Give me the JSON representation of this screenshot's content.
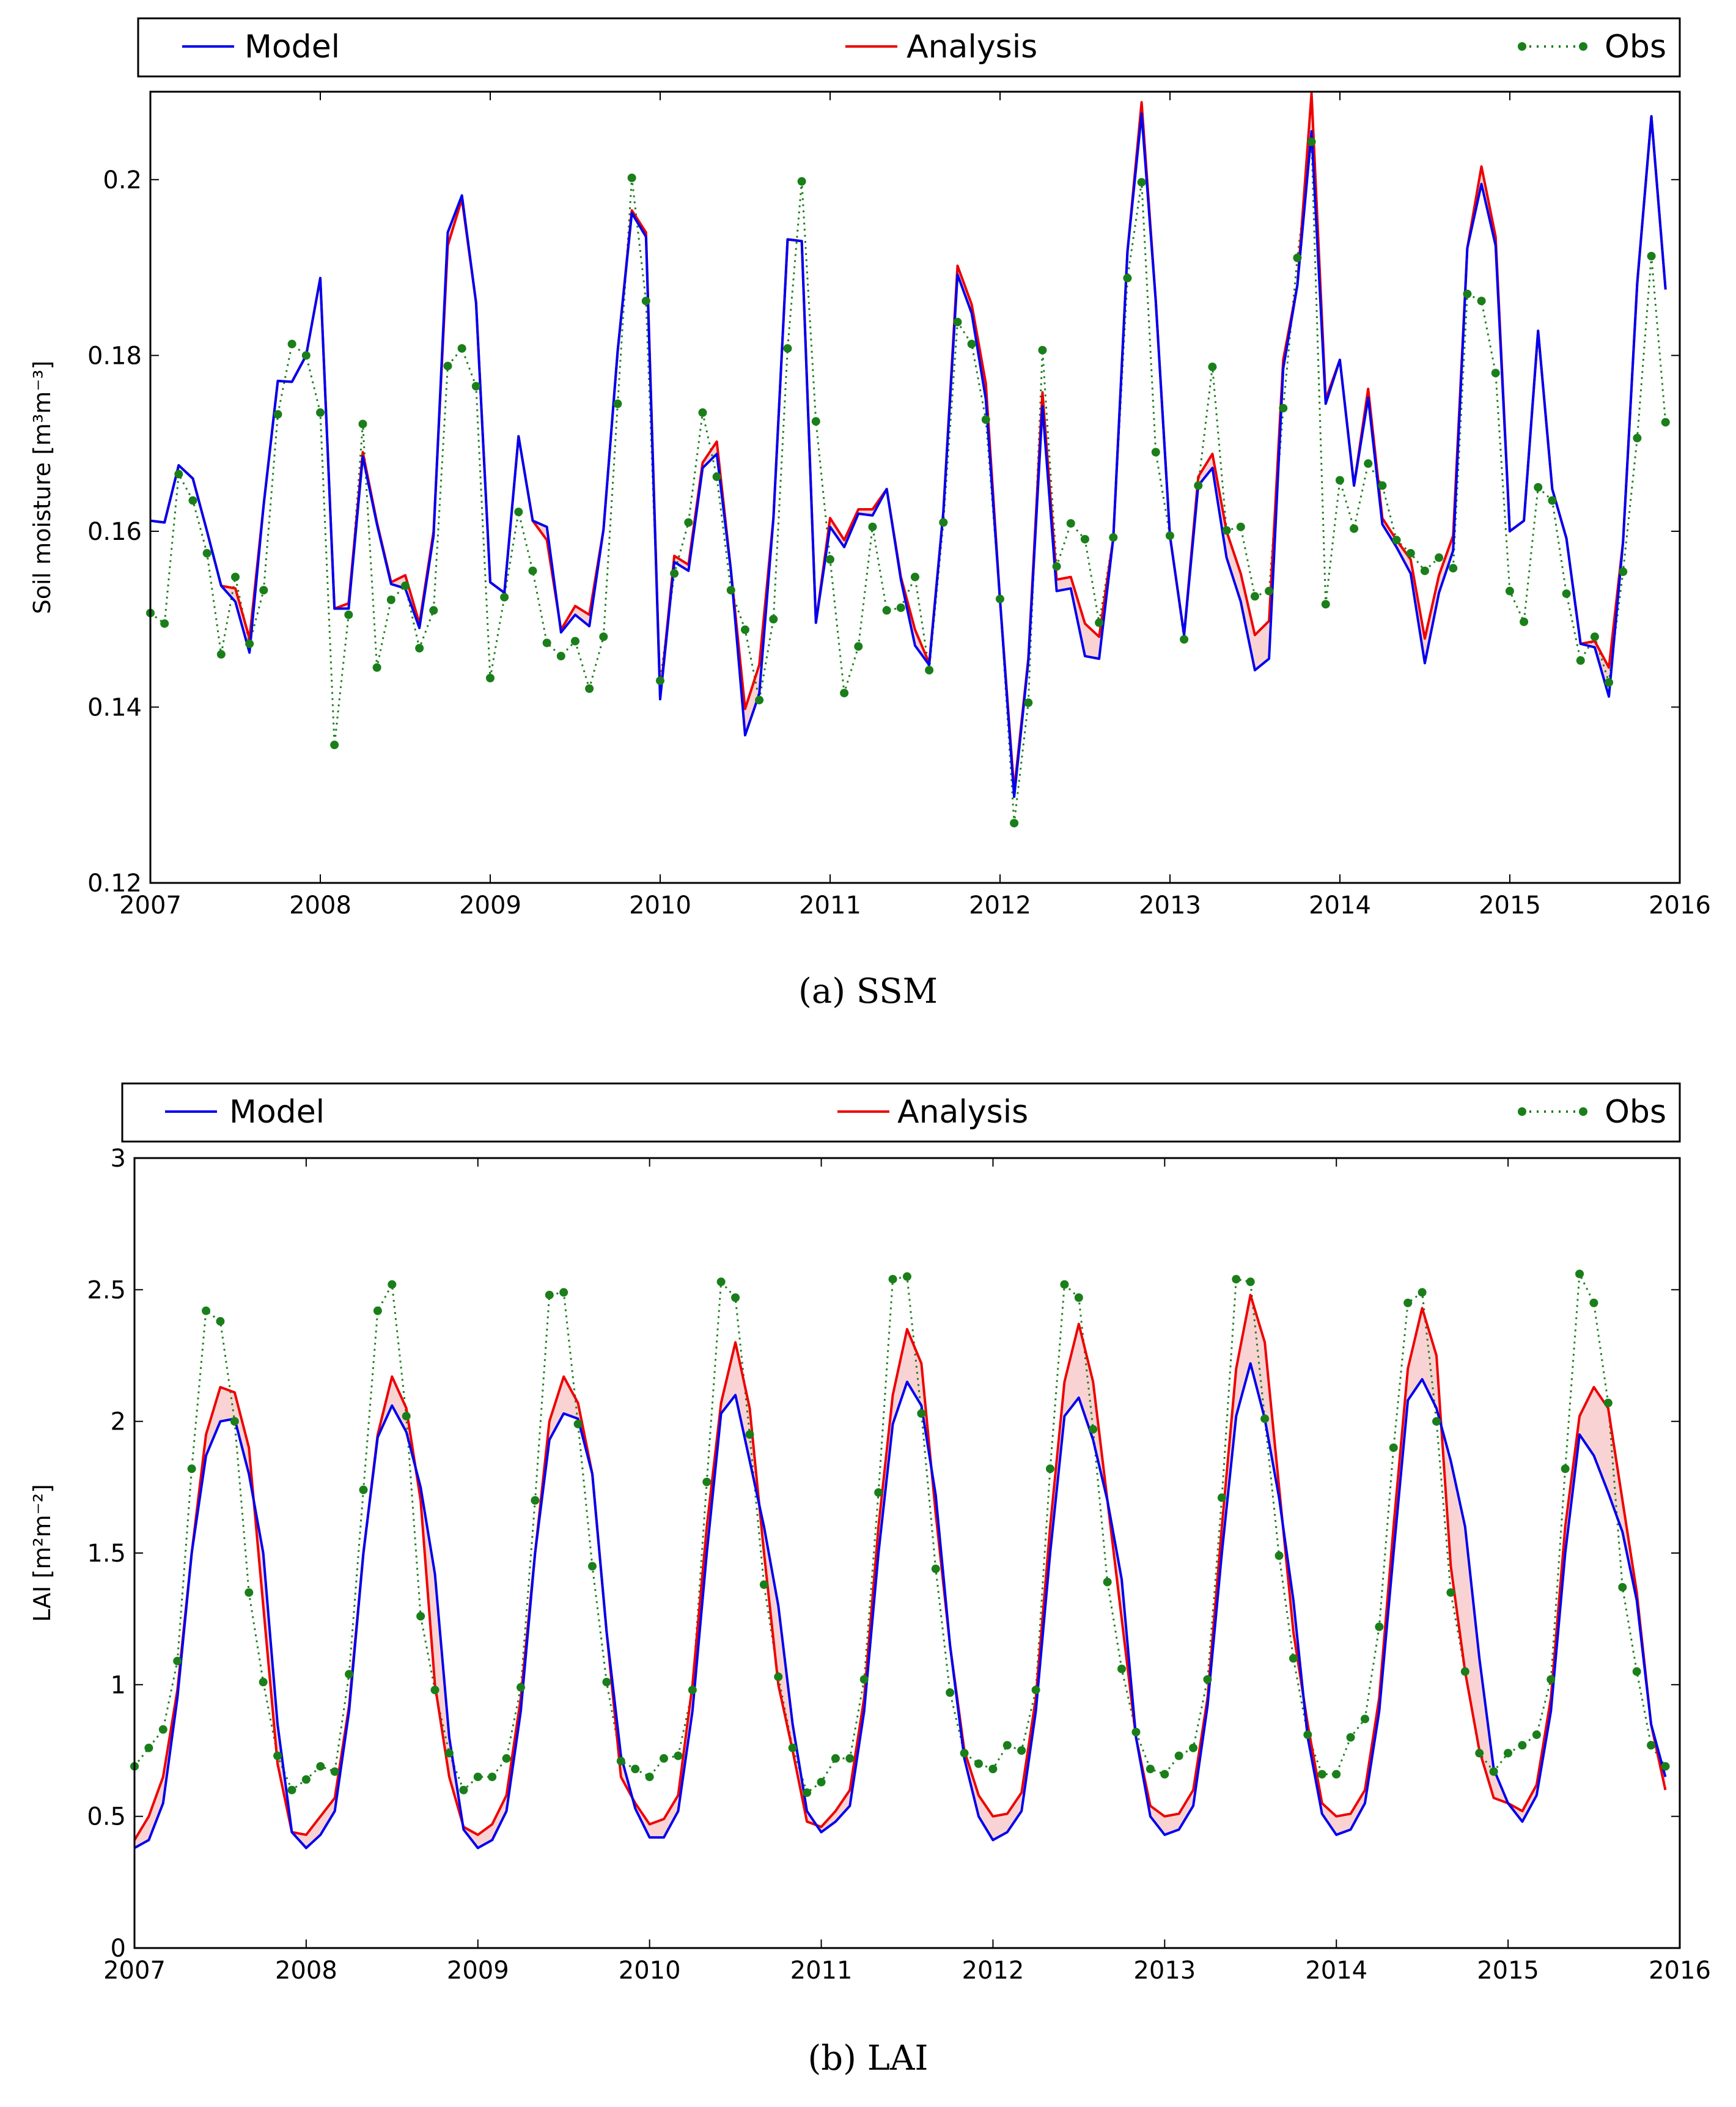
{
  "figure": {
    "legend": {
      "model": "Model",
      "analysis": "Analysis",
      "obs": "Obs"
    },
    "colors": {
      "model": "#0000ee",
      "analysis": "#ee0000",
      "obs": "#1a7f1a",
      "fill": "#f9d3d3"
    }
  },
  "chart_data": [
    {
      "type": "line",
      "caption": "(a)  SSM",
      "title": "",
      "xlabel": "",
      "ylabel": "Soil moisture [m³m⁻³]",
      "xlim": [
        2007,
        2016
      ],
      "ylim": [
        0.12,
        0.21
      ],
      "xticks": [
        2007,
        2008,
        2009,
        2010,
        2011,
        2012,
        2013,
        2014,
        2015,
        2016
      ],
      "xtick_labels": [
        "2007",
        "2008",
        "2009",
        "2010",
        "2011",
        "2012",
        "2013",
        "2014",
        "2015",
        "2016"
      ],
      "yticks": [
        0.12,
        0.14,
        0.16,
        0.18,
        0.2
      ],
      "ytick_labels": [
        "0.12",
        "0.14",
        "0.16",
        "0.18",
        "0.2"
      ],
      "series": [
        {
          "name": "Model",
          "start": 2007.0,
          "step": 0.08333,
          "values": [
            0.1612,
            0.161,
            0.1675,
            0.166,
            0.16,
            0.1538,
            0.152,
            0.1462,
            0.163,
            0.1771,
            0.177,
            0.18,
            0.1888,
            0.1512,
            0.1512,
            0.1685,
            0.1608,
            0.154,
            0.1535,
            0.149,
            0.1595,
            0.194,
            0.1982,
            0.186,
            0.1542,
            0.153,
            0.1708,
            0.1612,
            0.1605,
            0.1485,
            0.1505,
            0.1492,
            0.1602,
            0.1805,
            0.1962,
            0.1935,
            0.1409,
            0.1565,
            0.1555,
            0.1672,
            0.1688,
            0.1555,
            0.1368,
            0.1415,
            0.1615,
            0.1932,
            0.193,
            0.1496,
            0.1605,
            0.1582,
            0.162,
            0.1618,
            0.1648,
            0.1545,
            0.147,
            0.1448,
            0.1622,
            0.1892,
            0.1848,
            0.175,
            0.1522,
            0.1298,
            0.1452,
            0.1742,
            0.1532,
            0.1535,
            0.1458,
            0.1455,
            0.1592,
            0.1918,
            0.2075,
            0.1862,
            0.1595,
            0.1482,
            0.1652,
            0.1672,
            0.157,
            0.152,
            0.1442,
            0.1455,
            0.1785,
            0.188,
            0.2055,
            0.1745,
            0.1795,
            0.1652,
            0.1752,
            0.1608,
            0.1582,
            0.1552,
            0.145,
            0.153,
            0.1578,
            0.1922,
            0.1995,
            0.1925,
            0.16,
            0.1612,
            0.1828,
            0.1648,
            0.1592,
            0.1472,
            0.1468,
            0.1412,
            0.1588,
            0.1882,
            0.2072,
            0.1875
          ]
        },
        {
          "name": "Analysis",
          "start": 2007.0,
          "step": 0.08333,
          "values": [
            0.1612,
            0.161,
            0.1675,
            0.166,
            0.16,
            0.1538,
            0.1535,
            0.1478,
            0.163,
            0.1771,
            0.177,
            0.18,
            0.1888,
            0.1512,
            0.1518,
            0.169,
            0.161,
            0.1542,
            0.155,
            0.1495,
            0.16,
            0.1925,
            0.1978,
            0.186,
            0.1542,
            0.153,
            0.1708,
            0.1612,
            0.159,
            0.1488,
            0.1515,
            0.1505,
            0.1602,
            0.1805,
            0.1965,
            0.194,
            0.1412,
            0.1572,
            0.1562,
            0.1678,
            0.1702,
            0.1555,
            0.1398,
            0.1448,
            0.1615,
            0.1932,
            0.193,
            0.1496,
            0.1615,
            0.159,
            0.1625,
            0.1625,
            0.1648,
            0.1548,
            0.1488,
            0.145,
            0.1622,
            0.1902,
            0.1858,
            0.1768,
            0.1522,
            0.1305,
            0.1455,
            0.1758,
            0.1545,
            0.1548,
            0.1495,
            0.148,
            0.1592,
            0.1918,
            0.2088,
            0.1862,
            0.1595,
            0.1482,
            0.1662,
            0.1688,
            0.16,
            0.1552,
            0.1482,
            0.1498,
            0.1795,
            0.188,
            0.2098,
            0.175,
            0.1795,
            0.1652,
            0.1762,
            0.1615,
            0.159,
            0.1568,
            0.1478,
            0.155,
            0.1595,
            0.1922,
            0.2015,
            0.1935,
            0.16,
            0.1612,
            0.1828,
            0.1648,
            0.1592,
            0.1472,
            0.1475,
            0.1445,
            0.1588,
            0.1882,
            0.2072,
            0.1875
          ]
        },
        {
          "name": "Obs",
          "start": 2007.0,
          "step": 0.08333,
          "values": [
            0.1507,
            0.1495,
            0.1665,
            0.1635,
            0.1575,
            0.146,
            0.1548,
            0.1472,
            0.1533,
            0.1733,
            0.1813,
            0.18,
            0.1735,
            0.1357,
            0.1505,
            0.1722,
            0.1445,
            0.1522,
            0.1538,
            0.1467,
            0.151,
            0.1788,
            0.1808,
            0.1765,
            0.1433,
            0.1525,
            0.1622,
            0.1555,
            0.1473,
            0.1458,
            0.1475,
            0.1421,
            0.148,
            0.1745,
            0.2002,
            0.1862,
            0.143,
            0.1552,
            0.161,
            0.1735,
            0.1662,
            0.1533,
            0.1488,
            0.1408,
            0.15,
            0.1808,
            0.1998,
            0.1725,
            0.1568,
            0.1416,
            0.1469,
            0.1605,
            0.151,
            0.1513,
            0.1548,
            0.1442,
            0.161,
            0.1838,
            0.1813,
            0.1727,
            0.1523,
            0.1268,
            0.1405,
            0.1806,
            0.156,
            0.1609,
            0.1591,
            0.1496,
            0.1593,
            0.1888,
            0.1997,
            0.169,
            0.1595,
            0.1477,
            0.1652,
            0.1787,
            0.1601,
            0.1605,
            0.1526,
            0.1532,
            0.174,
            0.1911,
            0.2043,
            0.1517,
            0.1658,
            0.1603,
            0.1677,
            0.1652,
            0.159,
            0.1575,
            0.1555,
            0.157,
            0.1558,
            0.187,
            0.1862,
            0.178,
            0.1532,
            0.1497,
            0.165,
            0.1635,
            0.1529,
            0.1453,
            0.148,
            0.1428,
            0.1554,
            0.1706,
            0.1913,
            0.1724
          ]
        }
      ]
    },
    {
      "type": "line",
      "caption": "(b)  LAI",
      "title": "",
      "xlabel": "",
      "ylabel": "LAI [m²m⁻²]",
      "xlim": [
        2007,
        2016
      ],
      "ylim": [
        0,
        3
      ],
      "xticks": [
        2007,
        2008,
        2009,
        2010,
        2011,
        2012,
        2013,
        2014,
        2015,
        2016
      ],
      "xtick_labels": [
        "2007",
        "2008",
        "2009",
        "2010",
        "2011",
        "2012",
        "2013",
        "2014",
        "2015",
        "2016"
      ],
      "yticks": [
        0,
        0.5,
        1,
        1.5,
        2,
        2.5,
        3
      ],
      "ytick_labels": [
        "0",
        "0.5",
        "1",
        "1.5",
        "2",
        "2.5",
        "3"
      ],
      "series": [
        {
          "name": "Model",
          "start": 2007.0,
          "step": 0.08333,
          "values": [
            0.38,
            0.41,
            0.55,
            0.95,
            1.5,
            1.87,
            2.0,
            2.01,
            1.8,
            1.5,
            0.85,
            0.44,
            0.38,
            0.43,
            0.52,
            0.9,
            1.5,
            1.94,
            2.06,
            1.96,
            1.75,
            1.42,
            0.8,
            0.45,
            0.38,
            0.41,
            0.52,
            0.9,
            1.5,
            1.93,
            2.03,
            2.01,
            1.8,
            1.2,
            0.73,
            0.53,
            0.42,
            0.42,
            0.52,
            0.9,
            1.5,
            2.03,
            2.1,
            1.85,
            1.6,
            1.3,
            0.85,
            0.52,
            0.44,
            0.48,
            0.54,
            0.9,
            1.5,
            1.99,
            2.15,
            2.06,
            1.72,
            1.15,
            0.72,
            0.5,
            0.41,
            0.44,
            0.52,
            0.9,
            1.5,
            2.02,
            2.09,
            1.93,
            1.7,
            1.4,
            0.8,
            0.5,
            0.43,
            0.45,
            0.54,
            0.92,
            1.5,
            2.02,
            2.22,
            2.01,
            1.71,
            1.32,
            0.8,
            0.51,
            0.43,
            0.45,
            0.55,
            0.9,
            1.5,
            2.08,
            2.16,
            2.05,
            1.85,
            1.6,
            1.1,
            0.68,
            0.55,
            0.48,
            0.58,
            0.9,
            1.5,
            1.95,
            1.87,
            1.73,
            1.58,
            1.32,
            0.85,
            0.65
          ]
        },
        {
          "name": "Analysis",
          "start": 2007.0,
          "step": 0.08333,
          "values": [
            0.41,
            0.5,
            0.65,
            0.98,
            1.5,
            1.95,
            2.13,
            2.11,
            1.9,
            1.3,
            0.7,
            0.44,
            0.43,
            0.5,
            0.57,
            0.92,
            1.5,
            1.95,
            2.17,
            2.05,
            1.7,
            1.0,
            0.65,
            0.46,
            0.43,
            0.47,
            0.58,
            0.95,
            1.5,
            2.0,
            2.17,
            2.07,
            1.8,
            1.2,
            0.65,
            0.55,
            0.47,
            0.49,
            0.58,
            1.0,
            1.6,
            2.07,
            2.3,
            2.05,
            1.5,
            1.0,
            0.75,
            0.48,
            0.46,
            0.52,
            0.6,
            0.95,
            1.6,
            2.1,
            2.35,
            2.22,
            1.65,
            1.15,
            0.75,
            0.58,
            0.5,
            0.51,
            0.59,
            0.95,
            1.6,
            2.15,
            2.37,
            2.15,
            1.7,
            1.25,
            0.8,
            0.54,
            0.5,
            0.51,
            0.6,
            0.95,
            1.6,
            2.2,
            2.48,
            2.3,
            1.75,
            1.2,
            0.85,
            0.55,
            0.5,
            0.51,
            0.6,
            0.95,
            1.6,
            2.2,
            2.43,
            2.25,
            1.45,
            1.05,
            0.75,
            0.57,
            0.55,
            0.52,
            0.62,
            0.95,
            1.6,
            2.02,
            2.13,
            2.05,
            1.7,
            1.35,
            0.85,
            0.6
          ]
        },
        {
          "name": "Obs",
          "start": 2007.0,
          "step": 0.08333,
          "values": [
            0.69,
            0.76,
            0.83,
            1.09,
            1.82,
            2.42,
            2.38,
            2.0,
            1.35,
            1.01,
            0.73,
            0.6,
            0.64,
            0.69,
            0.67,
            1.04,
            1.74,
            2.42,
            2.52,
            2.02,
            1.26,
            0.98,
            0.74,
            0.6,
            0.65,
            0.65,
            0.72,
            0.99,
            1.7,
            2.48,
            2.49,
            1.99,
            1.45,
            1.01,
            0.71,
            0.68,
            0.65,
            0.72,
            0.73,
            0.98,
            1.77,
            2.53,
            2.47,
            1.95,
            1.38,
            1.03,
            0.76,
            0.59,
            0.63,
            0.72,
            0.72,
            1.02,
            1.73,
            2.54,
            2.55,
            2.03,
            1.44,
            0.97,
            0.74,
            0.7,
            0.68,
            0.77,
            0.75,
            0.98,
            1.82,
            2.52,
            2.47,
            1.97,
            1.39,
            1.06,
            0.82,
            0.68,
            0.66,
            0.73,
            0.76,
            1.02,
            1.71,
            2.54,
            2.53,
            2.01,
            1.49,
            1.1,
            0.81,
            0.66,
            0.66,
            0.8,
            0.87,
            1.22,
            1.9,
            2.45,
            2.49,
            2.0,
            1.35,
            1.05,
            0.74,
            0.67,
            0.74,
            0.77,
            0.81,
            1.02,
            1.82,
            2.56,
            2.45,
            2.07,
            1.37,
            1.05,
            0.77,
            0.69
          ]
        }
      ]
    }
  ]
}
